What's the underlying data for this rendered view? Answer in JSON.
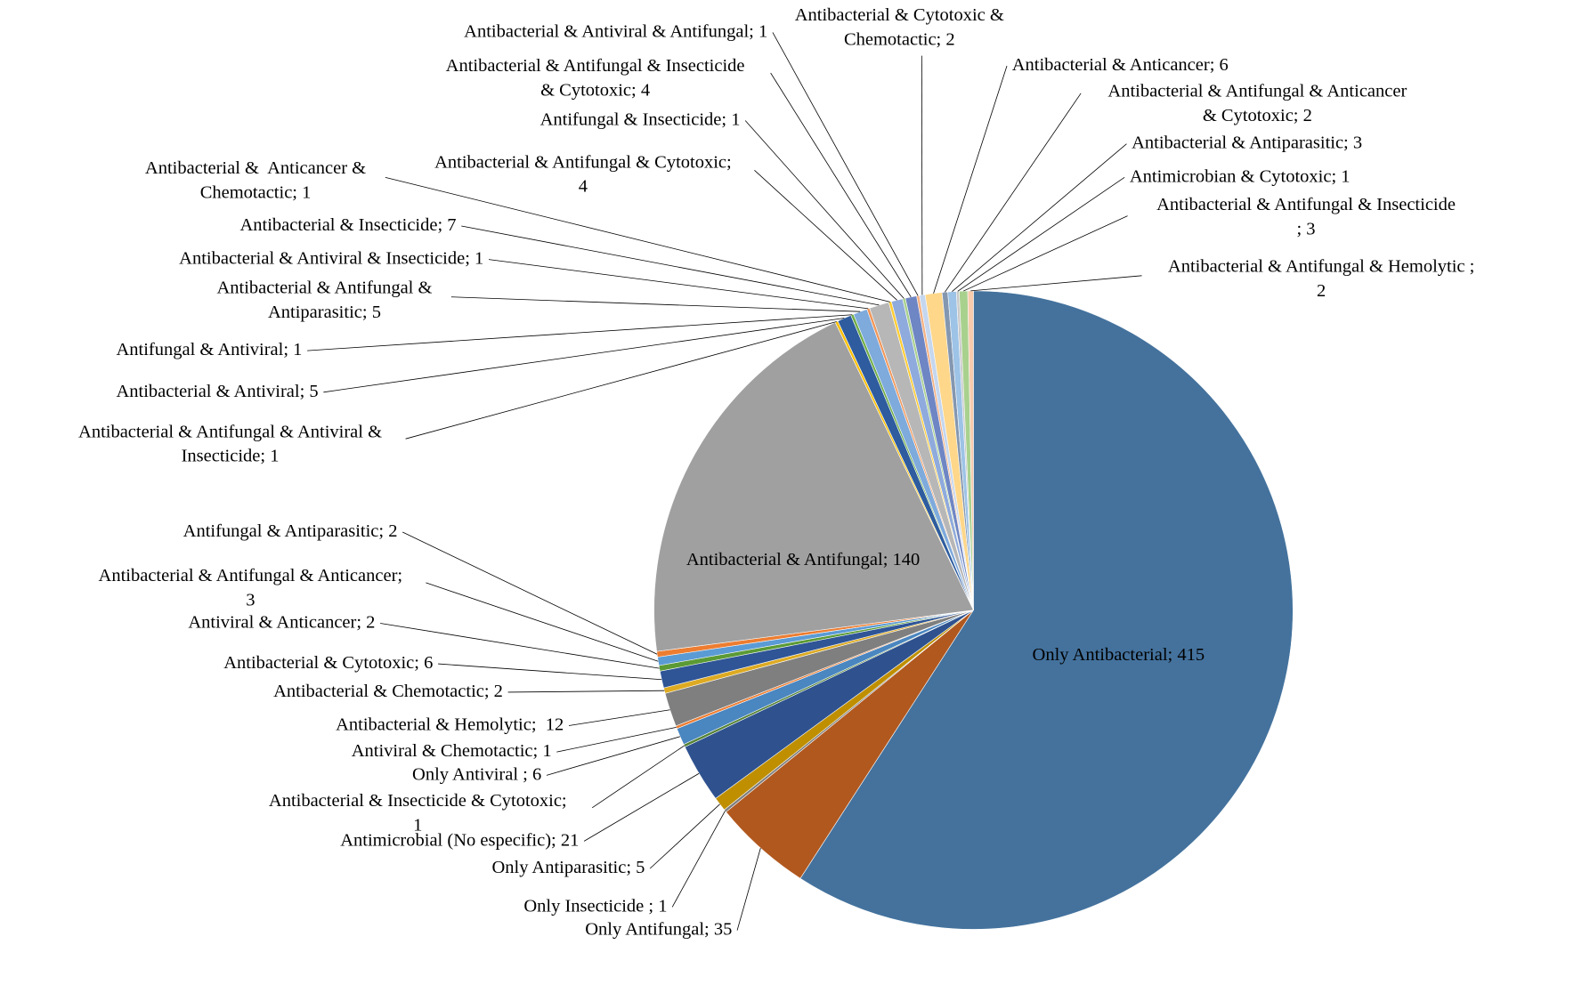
{
  "chart_data": {
    "type": "pie",
    "values": [
      415,
      35,
      1,
      5,
      21,
      1,
      6,
      1,
      12,
      2,
      6,
      2,
      3,
      2,
      140,
      1,
      5,
      1,
      5,
      1,
      7,
      1,
      4,
      1,
      4,
      1,
      2,
      6,
      2,
      3,
      1,
      3,
      2
    ],
    "value_labels": [
      "Only Antibacterial; 415",
      "Only Antifungal; 35",
      "Only Insecticide ; 1",
      "Only Antiparasitic; 5",
      "Antimicrobial (No especific); 21",
      "Antibacterial & Insecticide & Cytotoxic; 1",
      "Only Antiviral ; 6",
      "Antiviral & Chemotactic; 1",
      "Antibacterial & Hemolytic;  12",
      "Antibacterial & Chemotactic; 2",
      "Antibacterial & Cytotoxic; 6",
      "Antiviral & Anticancer; 2",
      "Antibacterial & Antifungal & Anticancer; 3",
      "Antifungal & Antiparasitic; 2",
      "Antibacterial & Antifungal; 140",
      "Antibacterial & Antifungal & Antiviral & Insecticide; 1",
      "Antibacterial & Antiviral; 5",
      "Antifungal & Antiviral; 1",
      "Antibacterial & Antifungal & Antiparasitic; 5",
      "Antibacterial & Antiviral & Insecticide; 1",
      "Antibacterial & Insecticide; 7",
      "Antibacterial &  Anticancer & Chemotactic; 1",
      "Antibacterial & Antifungal & Cytotoxic; 4",
      "Antifungal & Insecticide; 1",
      "Antibacterial & Antifungal & Insecticide & Cytotoxic; 4",
      "Antibacterial & Antiviral & Antifungal; 1",
      "Antibacterial & Cytotoxic & Chemotactic; 2",
      "Antibacterial & Anticancer; 6",
      "Antibacterial & Antifungal & Anticancer & Cytotoxic; 2",
      "Antibacterial & Antiparasitic; 3",
      "Antimicrobian & Cytotoxic; 1",
      "Antibacterial & Antifungal & Insecticide ; 3",
      "Antibacterial & Antifungal & Hemolytic ; 2"
    ],
    "colors": [
      "#44729d",
      "#b1581f",
      "#7f7f7f",
      "#bf8f00",
      "#2f528f",
      "#548235",
      "#4a86c0",
      "#ed7d31",
      "#7f7f7f",
      "#ddaa22",
      "#2f5597",
      "#5b9a35",
      "#5b9bd5",
      "#ed7d31",
      "#a0a0a0",
      "#ffc000",
      "#2e5c9e",
      "#70ad47",
      "#7eaadc",
      "#f1975a",
      "#b7b7b7",
      "#ffcd33",
      "#8faadc",
      "#a9d18e",
      "#6f86c4",
      "#f4b183",
      "#c5d7ef",
      "#ffd78a",
      "#8497b0",
      "#9dc3e6",
      "#c9c9c9",
      "#a9d18e",
      "#f8cbad"
    ]
  }
}
